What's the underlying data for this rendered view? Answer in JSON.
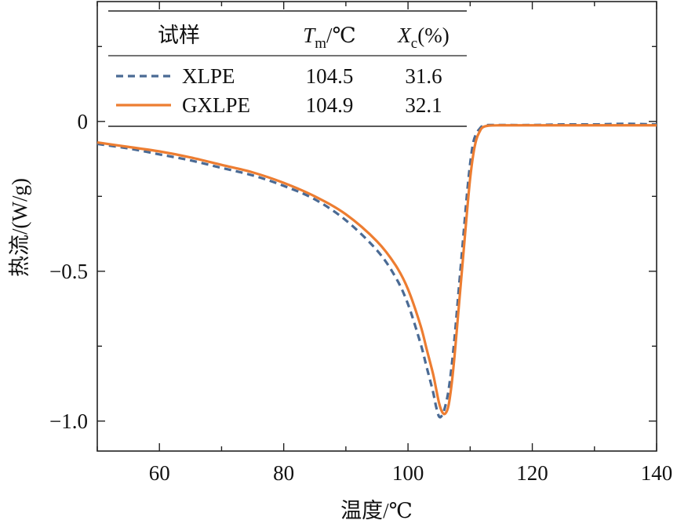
{
  "chart_data": {
    "type": "line",
    "xlabel": "温度/℃",
    "ylabel": "热流/(W/g)",
    "xlim": [
      50,
      140
    ],
    "ylim": [
      -1.1,
      0.4
    ],
    "x_ticks": [
      60,
      80,
      100,
      120,
      140
    ],
    "y_ticks": [
      0,
      -0.5,
      -1.0
    ],
    "x_tick_labels": [
      "60",
      "80",
      "100",
      "120",
      "140"
    ],
    "y_tick_labels": [
      "0",
      "−0.5",
      "−1.0"
    ],
    "legend": {
      "placement": "top-left",
      "columns": [
        "试样",
        "T",
        "m",
        "/℃",
        "X",
        "c",
        "(%)"
      ],
      "rows": [
        {
          "name": "XLPE",
          "tm": "104.5",
          "xc": "31.6"
        },
        {
          "name": "GXLPE",
          "tm": "104.9",
          "xc": "32.1"
        }
      ]
    },
    "series": [
      {
        "name": "XLPE",
        "color": "#4A6A94",
        "style": "dashed",
        "x": [
          50,
          55,
          60,
          65,
          70,
          75,
          80,
          85,
          90,
          95,
          98,
          100,
          102,
          103,
          104,
          104.5,
          105,
          105.5,
          106,
          106.5,
          107,
          107.5,
          108,
          108.5,
          109,
          109.5,
          110,
          110.5,
          111,
          111.5,
          112,
          113,
          115,
          120,
          125,
          130,
          135,
          140
        ],
        "y": [
          -0.075,
          -0.09,
          -0.11,
          -0.13,
          -0.155,
          -0.18,
          -0.215,
          -0.26,
          -0.33,
          -0.43,
          -0.52,
          -0.61,
          -0.74,
          -0.82,
          -0.9,
          -0.95,
          -0.985,
          -0.98,
          -0.95,
          -0.9,
          -0.82,
          -0.72,
          -0.6,
          -0.48,
          -0.36,
          -0.24,
          -0.14,
          -0.07,
          -0.04,
          -0.025,
          -0.015,
          -0.012,
          -0.012,
          -0.012,
          -0.01,
          -0.01,
          -0.008,
          -0.01
        ]
      },
      {
        "name": "GXLPE",
        "color": "#ED7D31",
        "style": "solid",
        "x": [
          50,
          55,
          60,
          65,
          70,
          75,
          80,
          85,
          90,
          95,
          98,
          100,
          102,
          103,
          104,
          104.5,
          105,
          105.5,
          106,
          106.5,
          107,
          107.5,
          108,
          108.5,
          109,
          109.5,
          110,
          110.5,
          111,
          111.5,
          112,
          113,
          115,
          120,
          125,
          130,
          135,
          140
        ],
        "y": [
          -0.07,
          -0.085,
          -0.1,
          -0.12,
          -0.145,
          -0.17,
          -0.205,
          -0.25,
          -0.31,
          -0.4,
          -0.48,
          -0.56,
          -0.68,
          -0.76,
          -0.84,
          -0.89,
          -0.94,
          -0.97,
          -0.975,
          -0.95,
          -0.88,
          -0.78,
          -0.66,
          -0.54,
          -0.42,
          -0.3,
          -0.19,
          -0.11,
          -0.06,
          -0.035,
          -0.02,
          -0.014,
          -0.013,
          -0.013,
          -0.013,
          -0.013,
          -0.013,
          -0.013
        ]
      }
    ]
  }
}
